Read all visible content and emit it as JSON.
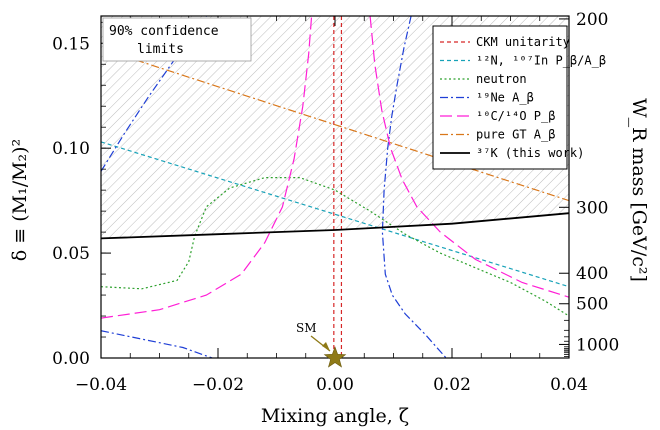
{
  "chart_data": {
    "type": "line",
    "note": "90% confidence limits",
    "xlabel": "Mixing angle, ζ",
    "ylabel": "δ ≡ (M₁/M₂)²",
    "y2label": "W_R mass [GeV/c²]",
    "xlim": [
      -0.04,
      0.04
    ],
    "ylim": [
      0.0,
      0.163
    ],
    "x_ticks": [
      -0.04,
      -0.02,
      0.0,
      0.02,
      0.04
    ],
    "x_tick_labels": [
      "−0.04",
      "−0.02",
      "0.00",
      "0.02",
      "0.04"
    ],
    "y_ticks": [
      0.0,
      0.05,
      0.1,
      0.15
    ],
    "y_tick_labels": [
      "0.00",
      "0.05",
      "0.10",
      "0.15"
    ],
    "y2_ticks": [
      200,
      300,
      400,
      500,
      1000
    ],
    "y2_tick_labels": [
      "200",
      "300",
      "400",
      "500",
      "1000"
    ],
    "excluded_region": "above 37K curve",
    "sm_point": {
      "label": "SM",
      "x": 0.0,
      "y": 0.0
    },
    "series": [
      {
        "name": "CKM unitarity",
        "style": "dashed",
        "color": "#d62728",
        "x_bounds": [
          -0.0002,
          0.0011
        ]
      },
      {
        "name": "¹²N, ¹⁰⁷In P_β/A_β",
        "style": "dashed",
        "color": "#17a2b8",
        "points": [
          [
            -0.04,
            0.103
          ],
          [
            0.04,
            0.034
          ]
        ]
      },
      {
        "name": "neutron",
        "style": "dotted",
        "color": "#2ca02c",
        "points": [
          [
            -0.04,
            0.034
          ],
          [
            -0.033,
            0.033
          ],
          [
            -0.027,
            0.037
          ],
          [
            -0.025,
            0.046
          ],
          [
            -0.024,
            0.058
          ],
          [
            -0.022,
            0.072
          ],
          [
            -0.018,
            0.081
          ],
          [
            -0.012,
            0.086
          ],
          [
            -0.006,
            0.086
          ],
          [
            0.0,
            0.08
          ],
          [
            0.006,
            0.07
          ],
          [
            0.012,
            0.059
          ],
          [
            0.018,
            0.05
          ],
          [
            0.024,
            0.043
          ],
          [
            0.03,
            0.036
          ],
          [
            0.036,
            0.027
          ],
          [
            0.04,
            0.02
          ]
        ]
      },
      {
        "name": "¹⁹Ne A_β",
        "style": "dash-dot",
        "color": "#1f3fd6",
        "branches": [
          [
            [
              -0.04,
              0.089
            ],
            [
              -0.036,
              0.107
            ],
            [
              -0.032,
              0.124
            ],
            [
              -0.028,
              0.14
            ],
            [
              -0.025,
              0.152
            ],
            [
              -0.022,
              0.163
            ]
          ],
          [
            [
              -0.04,
              0.013
            ],
            [
              -0.033,
              0.009
            ],
            [
              -0.026,
              0.005
            ],
            [
              -0.021,
              0.0
            ]
          ],
          [
            [
              0.013,
              0.163
            ],
            [
              0.0118,
              0.148
            ],
            [
              0.0106,
              0.13
            ],
            [
              0.0097,
              0.115
            ],
            [
              0.009,
              0.1
            ],
            [
              0.0084,
              0.08
            ],
            [
              0.0081,
              0.06
            ],
            [
              0.0086,
              0.04
            ],
            [
              0.0098,
              0.03
            ],
            [
              0.012,
              0.021
            ],
            [
              0.0155,
              0.011
            ],
            [
              0.019,
              0.0
            ]
          ]
        ]
      },
      {
        "name": "¹⁰C/¹⁴O P_β",
        "style": "long-dash",
        "color": "#ff1fd6",
        "branches": [
          [
            [
              -0.04,
              0.019
            ],
            [
              -0.03,
              0.023
            ],
            [
              -0.022,
              0.03
            ],
            [
              -0.016,
              0.04
            ],
            [
              -0.012,
              0.055
            ],
            [
              -0.009,
              0.072
            ],
            [
              -0.007,
              0.095
            ],
            [
              -0.0055,
              0.12
            ],
            [
              -0.0045,
              0.145
            ],
            [
              -0.004,
              0.163
            ]
          ],
          [
            [
              0.006,
              0.163
            ],
            [
              0.0068,
              0.14
            ],
            [
              0.008,
              0.118
            ],
            [
              0.0095,
              0.1
            ],
            [
              0.0115,
              0.085
            ],
            [
              0.014,
              0.072
            ],
            [
              0.018,
              0.06
            ],
            [
              0.024,
              0.047
            ],
            [
              0.032,
              0.036
            ],
            [
              0.04,
              0.029
            ]
          ]
        ]
      },
      {
        "name": "pure GT A_β",
        "style": "dash-dot",
        "color": "#d9771a",
        "points": [
          [
            -0.034,
            0.142
          ],
          [
            0.04,
            0.075
          ]
        ]
      },
      {
        "name": "³⁷K (this work)",
        "style": "solid",
        "color": "#000000",
        "points": [
          [
            -0.04,
            0.057
          ],
          [
            -0.02,
            0.059
          ],
          [
            0.0,
            0.061
          ],
          [
            0.02,
            0.064
          ],
          [
            0.04,
            0.069
          ]
        ]
      }
    ]
  }
}
